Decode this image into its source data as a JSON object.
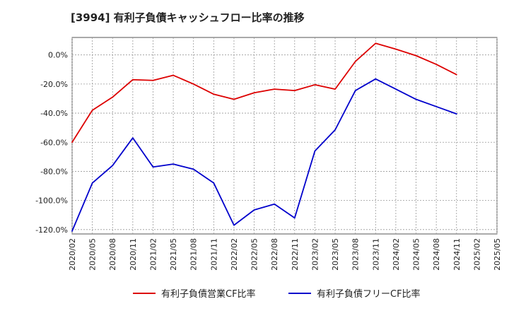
{
  "chart_data": {
    "type": "line",
    "title": "[3994]  有利子負債キャッシュフロー比率の推移",
    "xlabel": "",
    "ylabel": "",
    "x": [
      "2020/02",
      "2020/05",
      "2020/08",
      "2020/11",
      "2021/02",
      "2021/05",
      "2021/08",
      "2021/11",
      "2022/02",
      "2022/05",
      "2022/08",
      "2022/11",
      "2023/02",
      "2023/05",
      "2023/08",
      "2023/11",
      "2024/02",
      "2024/05",
      "2024/08",
      "2024/11",
      "2025/02",
      "2025/05"
    ],
    "ylim": [
      -123,
      12
    ],
    "yticks": [
      0,
      -20,
      -40,
      -60,
      -80,
      -100,
      -120
    ],
    "ytick_labels": [
      "0.0%",
      "-20.0%",
      "-40.0%",
      "-60.0%",
      "-80.0%",
      "-100.0%",
      "-120.0%"
    ],
    "grid": true,
    "legend_position": "bottom",
    "series": [
      {
        "name": "有利子負債営業CF比率",
        "color": "#dd0000",
        "points": [
          [
            "2020/02",
            -60
          ],
          [
            "2020/05",
            -38
          ],
          [
            "2020/08",
            -29
          ],
          [
            "2020/11",
            -17
          ],
          [
            "2021/02",
            -17.5
          ],
          [
            "2021/05",
            -14
          ],
          [
            "2021/08",
            -20
          ],
          [
            "2021/11",
            -27
          ],
          [
            "2022/02",
            -30.5
          ],
          [
            "2022/05",
            -26
          ],
          [
            "2022/08",
            -23.5
          ],
          [
            "2022/11",
            -24.5
          ],
          [
            "2023/02",
            -20.5
          ],
          [
            "2023/05",
            -23.5
          ],
          [
            "2023/08",
            -4.5
          ],
          [
            "2023/11",
            8
          ],
          [
            "2024/02",
            4
          ],
          [
            "2024/05",
            -0.5
          ],
          [
            "2024/08",
            -6.5
          ],
          [
            "2024/11",
            -13.5
          ]
        ]
      },
      {
        "name": "有利子負債フリーCF比率",
        "color": "#0000cc",
        "points": [
          [
            "2020/02",
            -121
          ],
          [
            "2020/05",
            -88
          ],
          [
            "2020/08",
            -76
          ],
          [
            "2020/11",
            -57
          ],
          [
            "2021/02",
            -77
          ],
          [
            "2021/05",
            -75
          ],
          [
            "2021/08",
            -78.5
          ],
          [
            "2021/11",
            -88
          ],
          [
            "2022/02",
            -117
          ],
          [
            "2022/05",
            -106.5
          ],
          [
            "2022/08",
            -102.5
          ],
          [
            "2022/11",
            -112
          ],
          [
            "2023/02",
            -66
          ],
          [
            "2023/05",
            -51.5
          ],
          [
            "2023/08",
            -24.5
          ],
          [
            "2023/11",
            -16.5
          ],
          [
            "2024/02",
            -23.5
          ],
          [
            "2024/05",
            -30.5
          ],
          [
            "2024/08",
            -35.5
          ],
          [
            "2024/11",
            -40.5
          ]
        ]
      }
    ]
  }
}
